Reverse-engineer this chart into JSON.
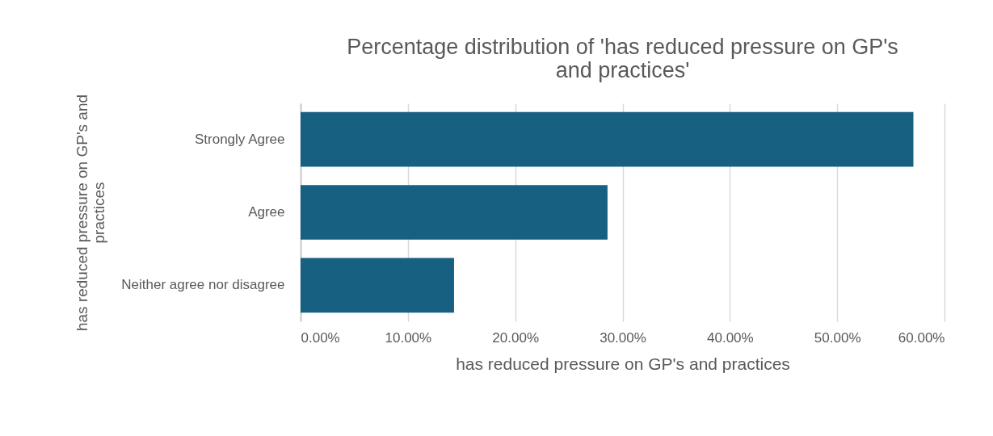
{
  "chart_data": {
    "type": "bar",
    "orientation": "horizontal",
    "title": "Percentage distribution of 'has reduced pressure on GP's and practices'",
    "xlabel": "has reduced pressure on GP's and practices",
    "ylabel": "has reduced pressure on GP's and practices",
    "categories": [
      "Strongly Agree",
      "Agree",
      "Neither agree nor disagree"
    ],
    "values": [
      57.1,
      28.6,
      14.3
    ],
    "color": "#176082",
    "xlim": [
      0,
      60
    ],
    "xticks": [
      {
        "value": 0,
        "label": "0.00%"
      },
      {
        "value": 10,
        "label": "10.00%"
      },
      {
        "value": 20,
        "label": "20.00%"
      },
      {
        "value": 30,
        "label": "30.00%"
      },
      {
        "value": 40,
        "label": "40.00%"
      },
      {
        "value": 50,
        "label": "50.00%"
      },
      {
        "value": 60,
        "label": "60.00%"
      }
    ],
    "grid": "x"
  }
}
